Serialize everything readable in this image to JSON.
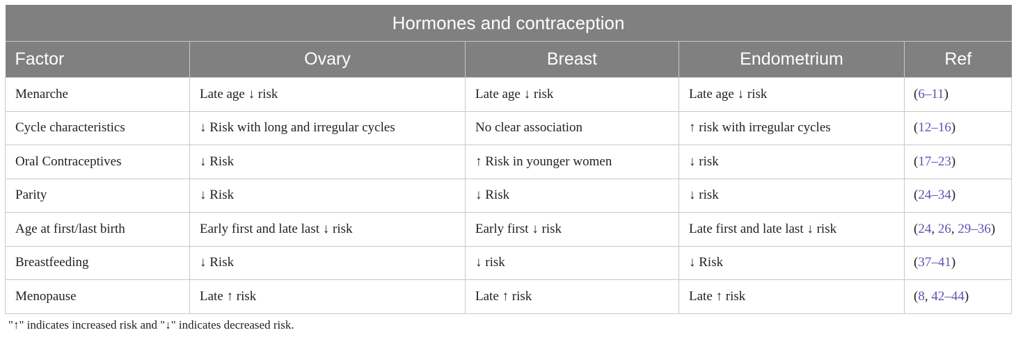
{
  "table": {
    "title": "Hormones and contraception",
    "headers": [
      "Factor",
      "Ovary",
      "Breast",
      "Endometrium",
      "Ref"
    ],
    "rows": [
      {
        "factor": "Menarche",
        "ovary": "Late age ↓ risk",
        "breast": "Late age ↓ risk",
        "endometrium": "Late age ↓ risk",
        "ref": {
          "open": "(",
          "links": [
            "6–11"
          ],
          "seps": [],
          "close": ")"
        }
      },
      {
        "factor": "Cycle characteristics",
        "ovary": "↓ Risk with long and irregular cycles",
        "breast": "No clear association",
        "endometrium": "↑ risk with irregular cycles",
        "ref": {
          "open": "(",
          "links": [
            "12–16"
          ],
          "seps": [],
          "close": ")"
        }
      },
      {
        "factor": "Oral Contraceptives",
        "ovary": "↓ Risk",
        "breast": "↑ Risk in younger women",
        "endometrium": "↓ risk",
        "ref": {
          "open": "(",
          "links": [
            "17–23"
          ],
          "seps": [],
          "close": ")"
        }
      },
      {
        "factor": "Parity",
        "ovary": "↓ Risk",
        "breast": "↓ Risk",
        "endometrium": "↓ risk",
        "ref": {
          "open": "(",
          "links": [
            "24–34"
          ],
          "seps": [],
          "close": ")"
        }
      },
      {
        "factor": "Age at first/last birth",
        "ovary": "Early first and late last ↓ risk",
        "breast": "Early first ↓ risk",
        "endometrium": "Late first and late last ↓ risk",
        "ref": {
          "open": "(",
          "links": [
            "24",
            "26",
            "29–36"
          ],
          "seps": [
            ", ",
            ", "
          ],
          "close": ")"
        }
      },
      {
        "factor": "Breastfeeding",
        "ovary": "↓ Risk",
        "breast": "↓ risk",
        "endometrium": "↓ Risk",
        "ref": {
          "open": "(",
          "links": [
            "37–41"
          ],
          "seps": [],
          "close": ")"
        }
      },
      {
        "factor": "Menopause",
        "ovary": "Late ↑ risk",
        "breast": "Late ↑ risk",
        "endometrium": "Late ↑ risk",
        "ref": {
          "open": "(",
          "links": [
            "8",
            "42–44"
          ],
          "seps": [
            ", "
          ],
          "close": ")"
        }
      }
    ]
  },
  "footnote": "\"↑\" indicates increased risk and  \"↓\" indicates decreased risk.",
  "colors": {
    "header_bg": "#808080",
    "header_text": "#ffffff",
    "grid": "#c8c8c8",
    "link": "#5a55b0"
  }
}
